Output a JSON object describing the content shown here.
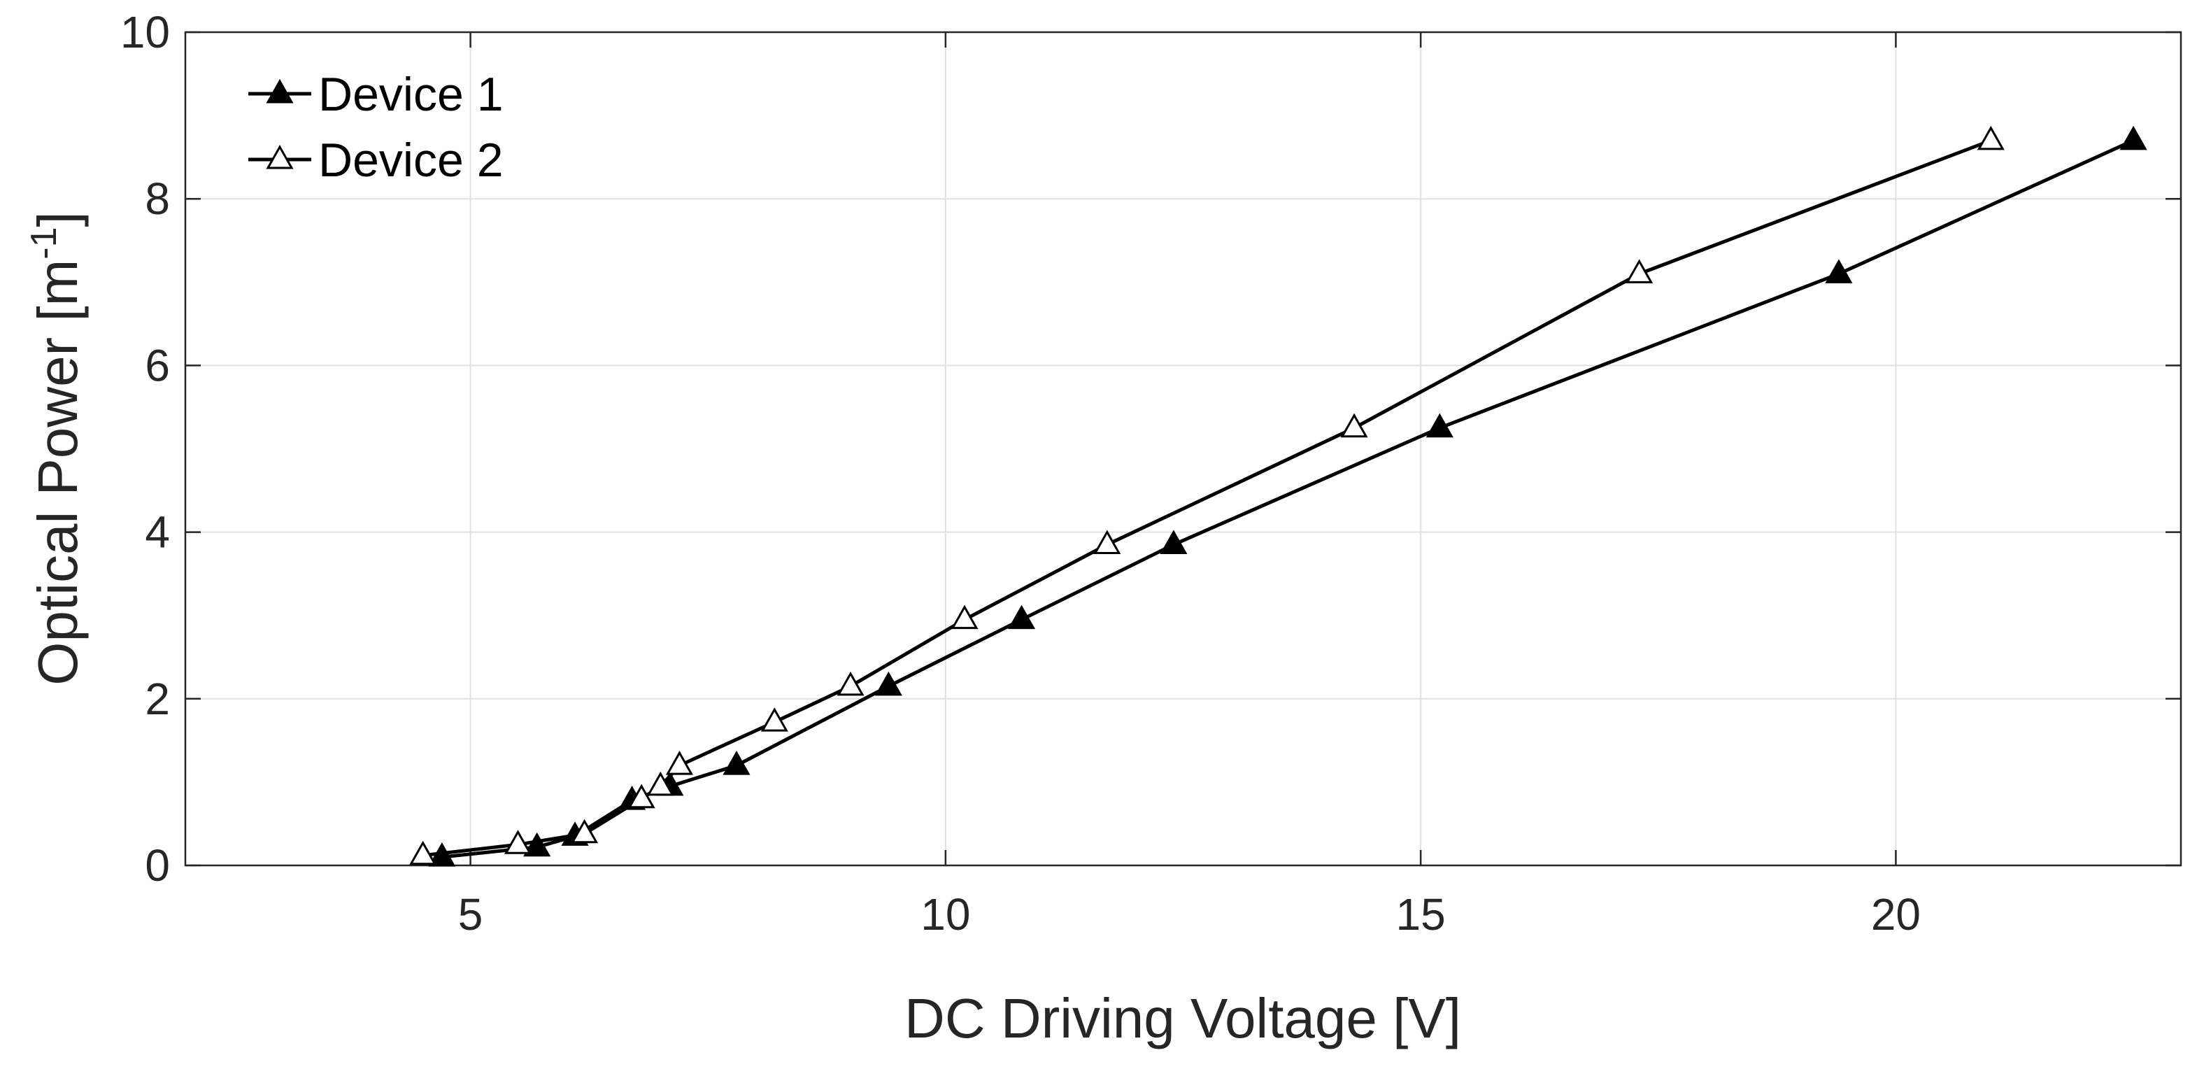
{
  "chart_data": {
    "type": "line",
    "title": "",
    "xlabel": "DC Driving Voltage [V]",
    "ylabel_main": "Optical Power [m",
    "ylabel_sup": "-1",
    "ylabel_close": "]",
    "xlim": [
      2,
      23
    ],
    "ylim": [
      0,
      10
    ],
    "xticks": [
      5,
      10,
      15,
      20
    ],
    "yticks": [
      0,
      2,
      4,
      6,
      8,
      10
    ],
    "grid": true,
    "legend_position": "top-left",
    "series": [
      {
        "name": "Device 1",
        "marker": "filled-triangle",
        "color": "#000000",
        "points": [
          [
            4.7,
            0.1
          ],
          [
            5.7,
            0.22
          ],
          [
            6.1,
            0.35
          ],
          [
            6.7,
            0.78
          ],
          [
            7.1,
            0.95
          ],
          [
            7.8,
            1.2
          ],
          [
            9.4,
            2.15
          ],
          [
            10.8,
            2.95
          ],
          [
            12.4,
            3.85
          ],
          [
            15.2,
            5.25
          ],
          [
            19.4,
            7.1
          ],
          [
            22.5,
            8.7
          ]
        ]
      },
      {
        "name": "Device 2",
        "marker": "open-triangle",
        "color": "#000000",
        "points": [
          [
            4.5,
            0.12
          ],
          [
            5.5,
            0.25
          ],
          [
            6.2,
            0.38
          ],
          [
            6.8,
            0.8
          ],
          [
            7.0,
            0.95
          ],
          [
            7.2,
            1.2
          ],
          [
            8.2,
            1.72
          ],
          [
            9.0,
            2.15
          ],
          [
            10.2,
            2.95
          ],
          [
            11.7,
            3.85
          ],
          [
            14.3,
            5.25
          ],
          [
            17.3,
            7.1
          ],
          [
            21.0,
            8.7
          ]
        ]
      }
    ]
  }
}
